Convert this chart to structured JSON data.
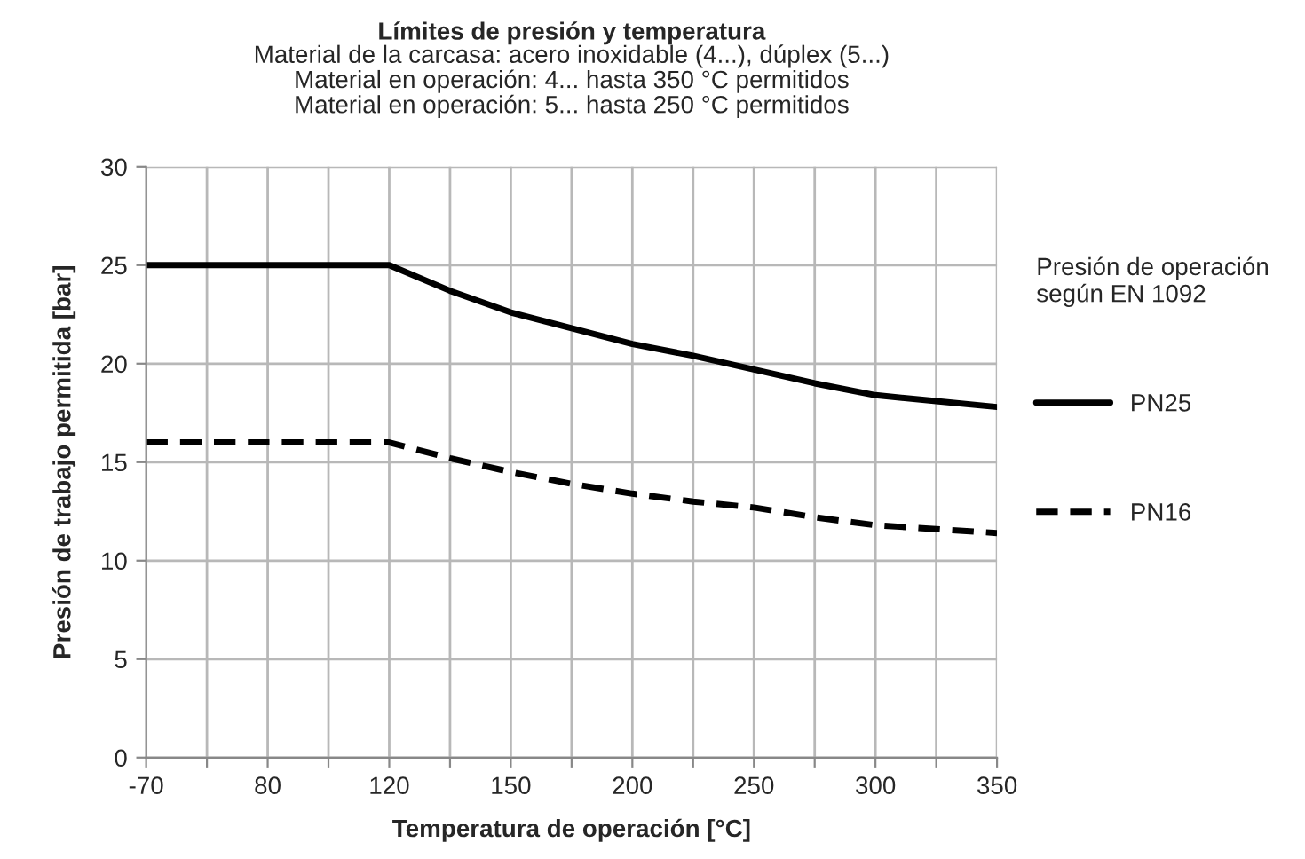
{
  "chart_data": {
    "type": "line",
    "title": "Límites de presión y temperatura",
    "subtitle": "Material de la carcasa: acero inoxidable (4...), dúplex (5...)\nMaterial en operación: 4... hasta 350 °C permitidos\nMaterial en operación: 5... hasta 250 °C permitidos",
    "xlabel": "Temperatura de operación [°C]",
    "ylabel": "Presión de trabajo permitida [bar]",
    "legend_title": "Presión de operación\nsegún EN 1092",
    "categories": [
      "-70",
      null,
      "80",
      null,
      "120",
      null,
      "150",
      null,
      "200",
      null,
      "250",
      null,
      "300",
      null,
      "350"
    ],
    "series": [
      {
        "name": "PN25",
        "color": "#000000",
        "line_style": "solid",
        "values": [
          25,
          25,
          25,
          25,
          25,
          23.7,
          22.6,
          21.8,
          21.0,
          20.4,
          19.7,
          19.0,
          18.4,
          18.1,
          17.8
        ]
      },
      {
        "name": "PN16",
        "color": "#000000",
        "line_style": "dashed",
        "values": [
          16,
          16,
          16,
          16,
          16,
          15.2,
          14.5,
          13.9,
          13.4,
          13.0,
          12.7,
          12.2,
          11.8,
          11.6,
          11.4
        ]
      }
    ],
    "ylim": [
      0,
      30
    ],
    "yticks": [
      0,
      5,
      10,
      15,
      20,
      25,
      30
    ],
    "grid": true,
    "legend": "right",
    "marker": "none"
  }
}
